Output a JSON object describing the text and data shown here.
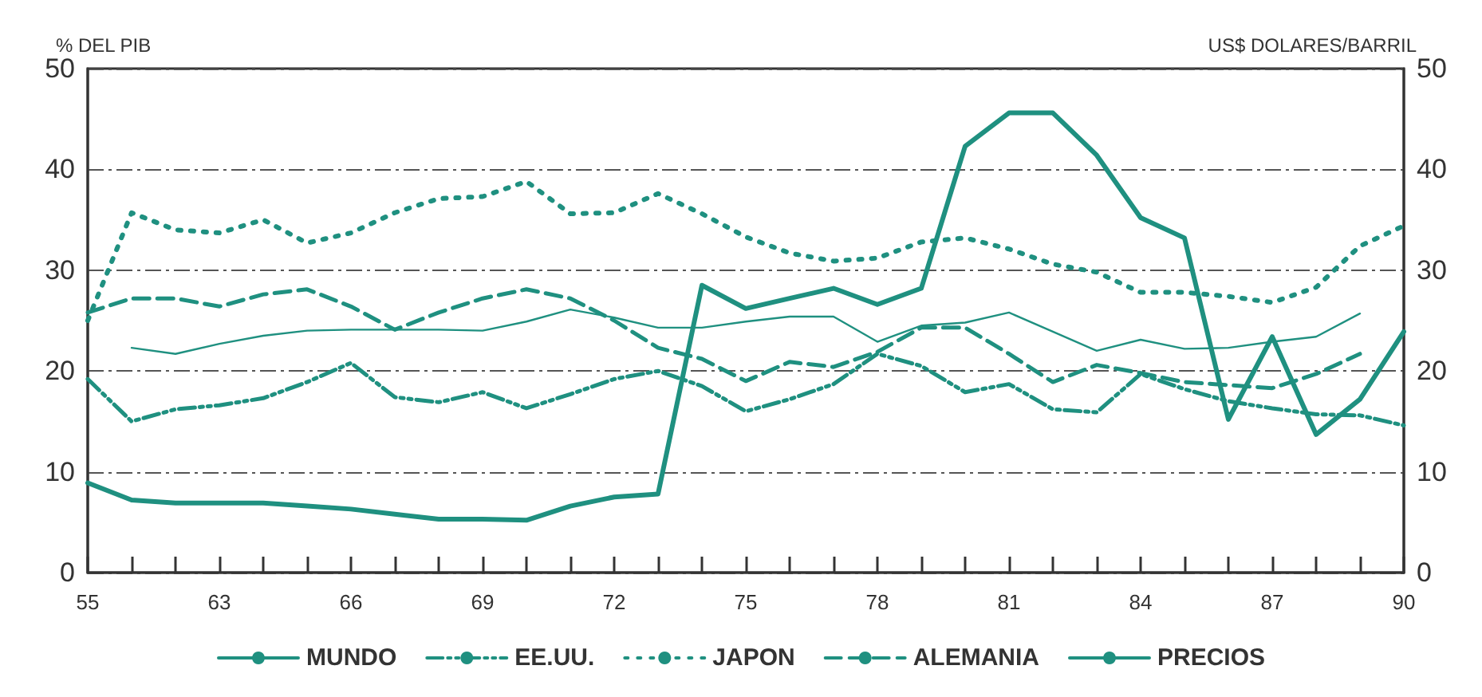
{
  "chart_data": {
    "type": "line",
    "ylabel": "% DEL PIB",
    "y2label": "US$ DOLARES/BARRIL",
    "categories": [
      "55",
      null,
      null,
      "63",
      null,
      null,
      "66",
      null,
      null,
      "69",
      null,
      null,
      "72",
      null,
      null,
      "75",
      null,
      null,
      "78",
      null,
      null,
      "81",
      null,
      null,
      "84",
      null,
      null,
      "87",
      null,
      null,
      "90"
    ],
    "ylim": [
      0,
      50
    ],
    "yticks": [
      0,
      10,
      20,
      30,
      40,
      50
    ],
    "y2lim": [
      0,
      50
    ],
    "y2ticks": [
      0,
      10,
      20,
      30,
      40,
      50
    ],
    "grid": "y",
    "legend": "bottom",
    "marker": "none",
    "series": [
      {
        "name": "MUNDO",
        "color": "#1f9080",
        "line_style": "solid",
        "values": [
          null,
          22.3,
          21.7,
          22.7,
          23.5,
          24.0,
          24.1,
          24.1,
          24.1,
          24.0,
          24.9,
          26.1,
          25.3,
          24.3,
          24.3,
          24.9,
          25.4,
          25.4,
          22.9,
          24.5,
          24.8,
          25.8,
          23.9,
          22.0,
          23.1,
          22.2,
          22.3,
          22.9,
          23.4,
          25.7,
          null
        ]
      },
      {
        "name": "EE.UU.",
        "color": "#1f9080",
        "line_style": "dashdot",
        "values": [
          19.2,
          15.0,
          16.2,
          16.6,
          17.3,
          18.9,
          20.8,
          17.4,
          16.9,
          17.9,
          16.3,
          17.7,
          19.2,
          20.0,
          18.5,
          16.0,
          17.2,
          18.7,
          21.7,
          20.5,
          17.9,
          18.7,
          16.2,
          15.9,
          19.7,
          18.2,
          17.0,
          16.3,
          15.7,
          15.6,
          14.6
        ]
      },
      {
        "name": "JAPON",
        "color": "#1f9080",
        "line_style": "dotted",
        "values": [
          25.0,
          35.7,
          34.0,
          33.7,
          35.0,
          32.7,
          33.7,
          35.7,
          37.1,
          37.3,
          38.8,
          35.6,
          35.7,
          37.6,
          35.6,
          33.3,
          31.7,
          30.9,
          31.2,
          32.8,
          33.2,
          32.1,
          30.6,
          29.8,
          27.8,
          27.8,
          27.4,
          26.8,
          28.3,
          32.4,
          34.4
        ]
      },
      {
        "name": "ALEMANIA",
        "color": "#1f9080",
        "line_style": "dashed",
        "values": [
          25.8,
          27.2,
          27.2,
          26.4,
          27.6,
          28.1,
          26.4,
          24.1,
          25.8,
          27.2,
          28.1,
          27.2,
          25.0,
          22.3,
          21.2,
          19.0,
          20.9,
          20.4,
          21.9,
          24.3,
          24.3,
          21.7,
          18.9,
          20.6,
          19.8,
          18.9,
          18.6,
          18.3,
          19.7,
          21.7,
          null
        ]
      },
      {
        "name": "PRECIOS",
        "color": "#1f9080",
        "line_style": "solid",
        "axis": "y2",
        "values": [
          8.9,
          7.2,
          6.9,
          6.9,
          6.9,
          6.6,
          6.3,
          5.8,
          5.3,
          5.3,
          5.2,
          6.6,
          7.5,
          7.8,
          28.5,
          26.2,
          27.2,
          28.2,
          26.6,
          28.2,
          42.3,
          45.6,
          45.6,
          41.4,
          35.2,
          33.2,
          15.2,
          23.4,
          13.7,
          17.2,
          23.9
        ]
      }
    ]
  }
}
